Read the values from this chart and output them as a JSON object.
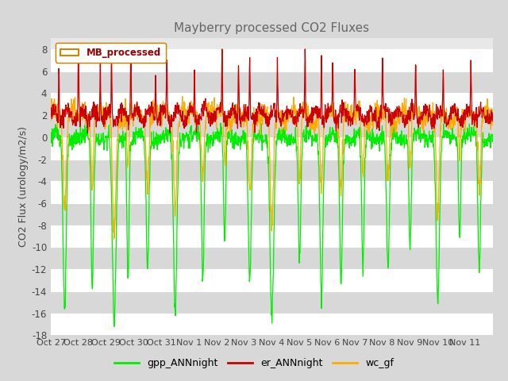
{
  "title": "Mayberry processed CO2 Fluxes",
  "ylabel": "CO2 Flux (urology/m2/s)",
  "ylim": [
    -18,
    9
  ],
  "yticks": [
    -18,
    -16,
    -14,
    -12,
    -10,
    -8,
    -6,
    -4,
    -2,
    0,
    2,
    4,
    6,
    8
  ],
  "x_labels": [
    "Oct 27",
    "Oct 28",
    "Oct 29",
    "Oct 30",
    "Oct 31",
    "Nov 1",
    "Nov 2",
    "Nov 3",
    "Nov 4",
    "Nov 5",
    "Nov 6",
    "Nov 7",
    "Nov 8",
    "Nov 9",
    "Nov 10",
    "Nov 11"
  ],
  "legend_label": "MB_processed",
  "series_labels": [
    "gpp_ANNnight",
    "er_ANNnight",
    "wc_gf"
  ],
  "series_colors": [
    "#00ee00",
    "#cc0000",
    "#ffaa00"
  ],
  "background_color": "#d8d8d8",
  "plot_bg_color": "#e8e8e8",
  "grid_color": "#ffffff",
  "band_color": "#d8d8d8",
  "title_color": "#666666",
  "n_days": 16,
  "pts_per_day": 96,
  "seed": 123
}
